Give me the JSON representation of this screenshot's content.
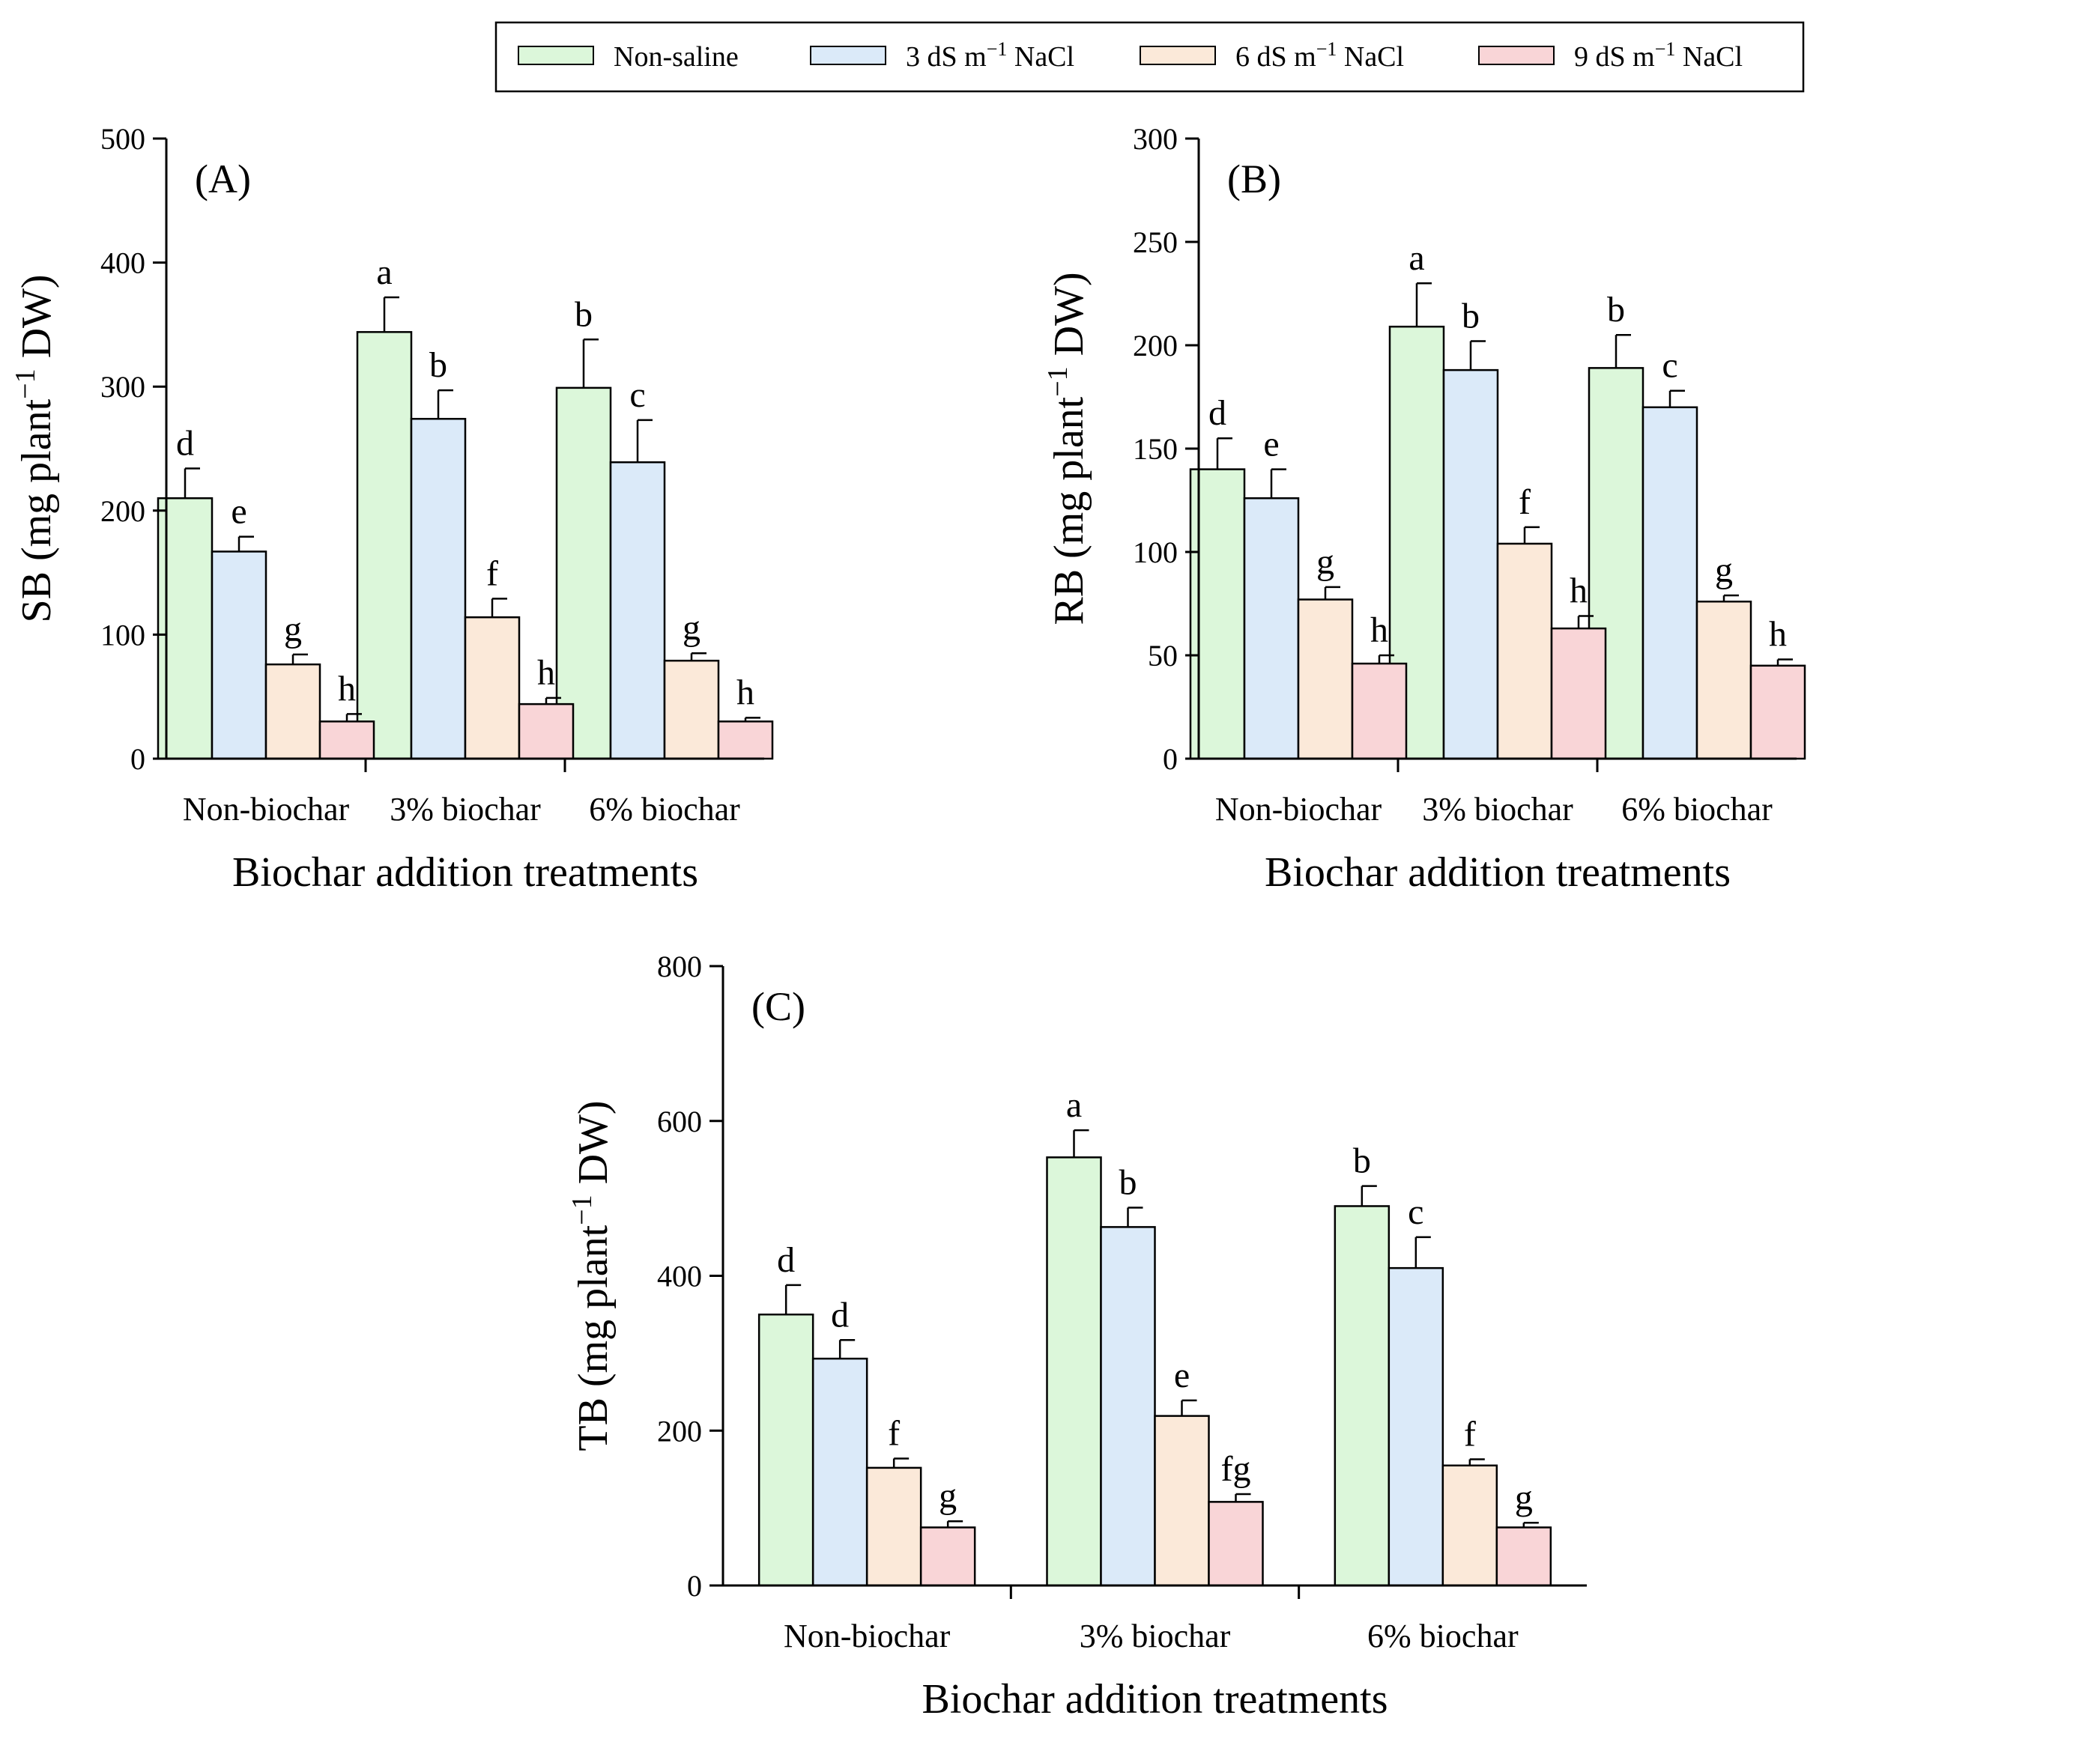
{
  "figure": {
    "colors": {
      "Non-saline": "#dcf7da",
      "3 dS m-1 NaCl": "#dbeaf9",
      "6 dS m-1 NaCl": "#fbe9d9",
      "9 dS m-1 NaCl": "#f9d5d7"
    }
  },
  "legend": {
    "entries": [
      {
        "base": "Non-saline",
        "sup": "",
        "tail": ""
      },
      {
        "base": "3 dS m",
        "sup": "−1",
        "tail": " NaCl"
      },
      {
        "base": "6 dS m",
        "sup": "−1",
        "tail": " NaCl"
      },
      {
        "base": "9 dS m",
        "sup": "−1",
        "tail": " NaCl"
      }
    ]
  },
  "chart_data": [
    {
      "type": "bar",
      "panel_label": "(A)",
      "ylabel": {
        "pre": "SB (mg plant",
        "sup": "−1",
        "post": " DW)"
      },
      "xlabel": "Biochar addition treatments",
      "categories": [
        "Non-biochar",
        "3% biochar",
        "6% biochar"
      ],
      "ylim": [
        0,
        500
      ],
      "yticks": [
        0,
        100,
        200,
        300,
        400,
        500
      ],
      "series": [
        {
          "name": "Non-saline",
          "values": [
            210,
            344,
            299
          ],
          "errors": [
            24,
            28,
            39
          ],
          "letters": [
            "d",
            "a",
            "b"
          ]
        },
        {
          "name": "3 dS m-1 NaCl",
          "values": [
            167,
            274,
            239
          ],
          "errors": [
            12,
            23,
            34
          ],
          "letters": [
            "e",
            "b",
            "c"
          ]
        },
        {
          "name": "6 dS m-1 NaCl",
          "values": [
            76,
            114,
            79
          ],
          "errors": [
            8,
            15,
            6
          ],
          "letters": [
            "g",
            "f",
            "g"
          ]
        },
        {
          "name": "9 dS m-1 NaCl",
          "values": [
            30,
            44,
            30
          ],
          "errors": [
            6,
            5,
            3
          ],
          "letters": [
            "h",
            "h",
            "h"
          ]
        }
      ]
    },
    {
      "type": "bar",
      "panel_label": "(B)",
      "ylabel": {
        "pre": "RB (mg plant",
        "sup": "−1",
        "post": " DW)"
      },
      "xlabel": "Biochar addition treatments",
      "categories": [
        "Non-biochar",
        "3% biochar",
        "6% biochar"
      ],
      "ylim": [
        0,
        300
      ],
      "yticks": [
        0,
        50,
        100,
        150,
        200,
        250,
        300
      ],
      "series": [
        {
          "name": "Non-saline",
          "values": [
            140,
            209,
            189
          ],
          "errors": [
            15,
            21,
            16
          ],
          "letters": [
            "d",
            "a",
            "b"
          ]
        },
        {
          "name": "3 dS m-1 NaCl",
          "values": [
            126,
            188,
            170
          ],
          "errors": [
            14,
            14,
            8
          ],
          "letters": [
            "e",
            "b",
            "c"
          ]
        },
        {
          "name": "6 dS m-1 NaCl",
          "values": [
            77,
            104,
            76
          ],
          "errors": [
            6,
            8,
            3
          ],
          "letters": [
            "g",
            "f",
            "g"
          ]
        },
        {
          "name": "9 dS m-1 NaCl",
          "values": [
            46,
            63,
            45
          ],
          "errors": [
            4,
            6,
            3
          ],
          "letters": [
            "h",
            "h",
            "h"
          ]
        }
      ]
    },
    {
      "type": "bar",
      "panel_label": "(C)",
      "ylabel": {
        "pre": "TB (mg plant",
        "sup": "−1",
        "post": " DW)"
      },
      "xlabel": "Biochar addition treatments",
      "categories": [
        "Non-biochar",
        "3% biochar",
        "6% biochar"
      ],
      "ylim": [
        0,
        800
      ],
      "yticks": [
        0,
        200,
        400,
        600,
        800
      ],
      "series": [
        {
          "name": "Non-saline",
          "values": [
            350,
            553,
            490
          ],
          "errors": [
            38,
            35,
            26
          ],
          "letters": [
            "d",
            "a",
            "b"
          ]
        },
        {
          "name": "3 dS m-1 NaCl",
          "values": [
            293,
            463,
            410
          ],
          "errors": [
            24,
            25,
            40
          ],
          "letters": [
            "d",
            "b",
            "c"
          ]
        },
        {
          "name": "6 dS m-1 NaCl",
          "values": [
            152,
            219,
            155
          ],
          "errors": [
            12,
            20,
            8
          ],
          "letters": [
            "f",
            "e",
            "f"
          ]
        },
        {
          "name": "9 dS m-1 NaCl",
          "values": [
            75,
            108,
            75
          ],
          "errors": [
            8,
            10,
            6
          ],
          "letters": [
            "g",
            "fg",
            "g"
          ]
        }
      ]
    }
  ]
}
